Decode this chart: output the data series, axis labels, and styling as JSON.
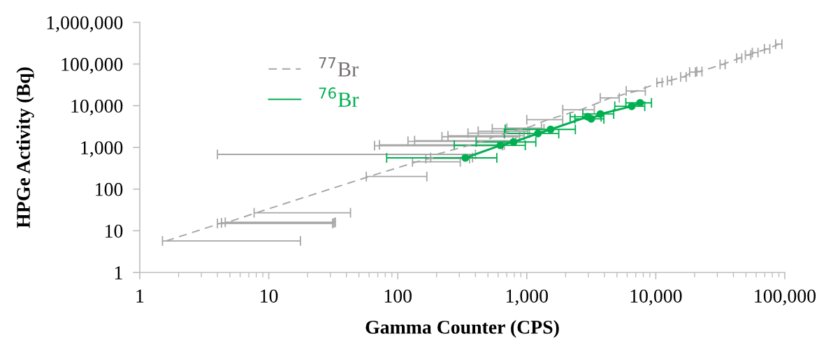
{
  "chart_data": {
    "type": "line",
    "xlabel": "Gamma Counter (CPS)",
    "ylabel": "HPGe Activity (Bq)",
    "log": "xy",
    "xlim": [
      1,
      100000
    ],
    "ylim": [
      1,
      1000000
    ],
    "xticks": [
      1,
      10,
      100,
      {
        "value": 1000,
        "label": "1,000"
      },
      {
        "value": 10000,
        "label": "10,000"
      },
      {
        "value": 100000,
        "label": "100,000"
      }
    ],
    "yticks": [
      1,
      10,
      100,
      {
        "value": 1000,
        "label": "1,000"
      },
      {
        "value": 10000,
        "label": "10,000"
      },
      {
        "value": 100000,
        "label": "100,000"
      },
      {
        "value": 1000000,
        "label": "1,000,000"
      }
    ],
    "grid": false,
    "legend": "top left",
    "series": [
      {
        "name": "$^{77}$Br",
        "color": "#a6a6a6",
        "line_style": "dashed",
        "marker": "none",
        "x": [
          1.6,
          4.2,
          4.5,
          4.8,
          8,
          60,
          140,
          175,
          190,
          200,
          350,
          370,
          450,
          480,
          550,
          600,
          700,
          720,
          950,
          1000,
          1450,
          2620,
          4460,
          7100,
          10700,
          12800,
          16400,
          19300,
          21800,
          33000,
          44400,
          52000,
          59000,
          73000,
          90000
        ],
        "values": [
          5.7,
          15,
          15.5,
          16,
          27,
          200,
          450,
          540,
          570,
          680,
          1100,
          1150,
          1400,
          1450,
          1800,
          1900,
          2200,
          2450,
          2800,
          2900,
          4600,
          8000,
          15400,
          22600,
          36000,
          40000,
          49000,
          64000,
          66000,
          98000,
          138000,
          165000,
          188000,
          230000,
          300000
        ],
        "xerrors": [
          [
            1.5,
            17.6
          ],
          [
            4,
            31.2
          ],
          [
            4.3,
            32
          ],
          [
            4.6,
            32.8
          ],
          [
            7.7,
            43
          ],
          [
            57,
            168
          ],
          [
            130,
            305
          ],
          [
            165,
            360
          ],
          [
            180,
            380
          ],
          [
            4,
            400
          ],
          [
            66,
            650
          ],
          [
            72,
            670
          ],
          [
            120,
            780
          ],
          [
            135,
            825
          ],
          [
            220,
            880
          ],
          [
            245,
            955
          ],
          [
            350,
            1050
          ],
          [
            420,
            1020
          ],
          [
            540,
            1360
          ],
          [
            700,
            1300
          ],
          [
            1000,
            1900
          ],
          [
            1900,
            3340
          ],
          [
            3710,
            5210
          ],
          [
            5900,
            8300
          ],
          [
            10200,
            11200
          ],
          [
            12300,
            13300
          ],
          [
            15600,
            17200
          ],
          [
            18300,
            20300
          ],
          [
            20800,
            22800
          ],
          [
            31500,
            34500
          ],
          [
            42400,
            46400
          ],
          [
            49500,
            54500
          ],
          [
            56000,
            62000
          ],
          [
            69500,
            76500
          ],
          [
            85000,
            95000
          ]
        ]
      },
      {
        "name": "$^{76}$Br",
        "color": "#00b050",
        "line_style": "solid",
        "marker": "circle",
        "x": [
          334,
          624,
          790,
          1220,
          1530,
          2970,
          3160,
          3720,
          6510,
          7560
        ],
        "values": [
          560,
          1120,
          1350,
          2150,
          2700,
          5430,
          4840,
          6330,
          9700,
          11700
        ],
        "xerrors": [
          252,
          350,
          385,
          550,
          850,
          800,
          800,
          1000,
          1700,
          1700
        ]
      }
    ]
  }
}
